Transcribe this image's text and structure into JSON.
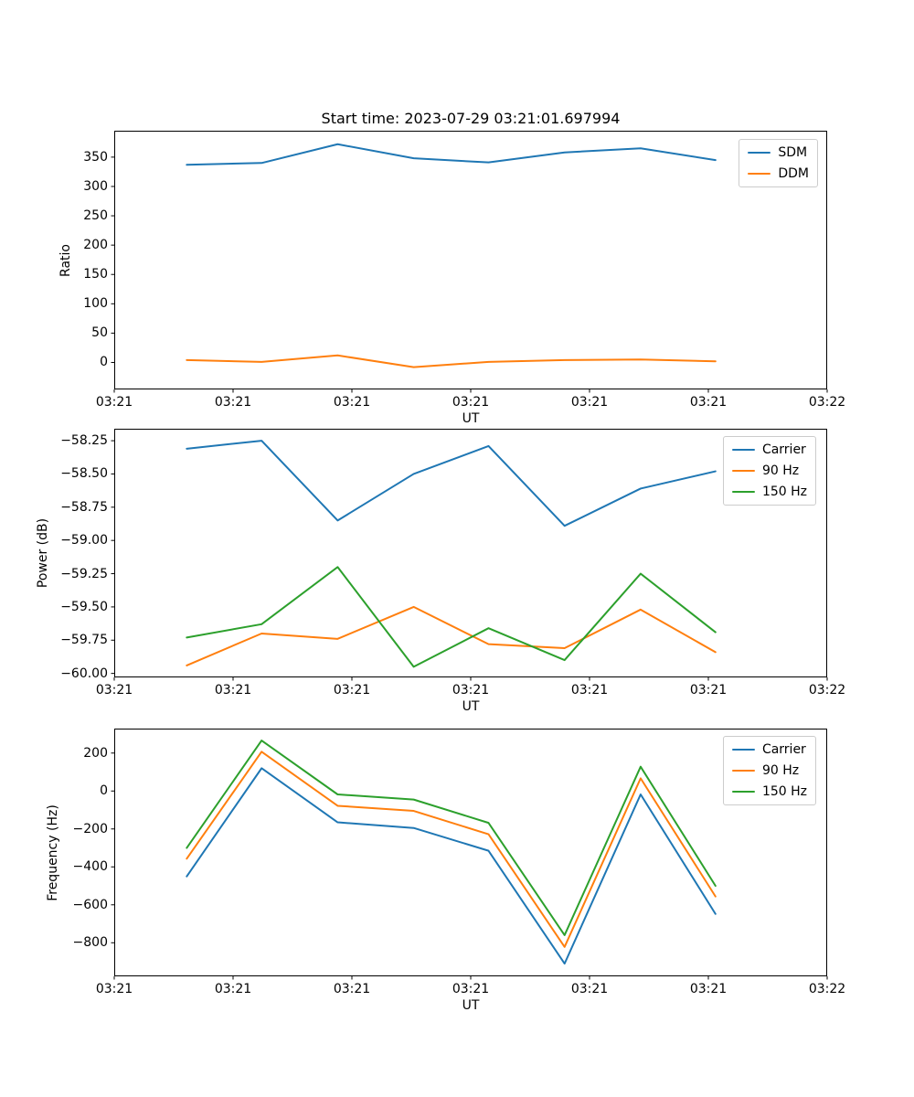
{
  "figure": {
    "background": "#ffffff",
    "frame_color": "#000000",
    "text_color": "#000000",
    "legend_border_color": "#cccccc"
  },
  "chart_data": [
    {
      "type": "line",
      "title": "Start time: 2023-07-29 03:21:01.697994",
      "xlabel": "UT",
      "ylabel": "Ratio",
      "xlim": [
        0,
        60
      ],
      "ylim": [
        -46,
        395
      ],
      "grid": false,
      "legend_position": "upper right",
      "xtick_seconds": [
        0,
        10,
        20,
        30,
        40,
        50,
        60
      ],
      "xtick_labels": [
        "03:21",
        "03:21",
        "03:21",
        "03:21",
        "03:21",
        "03:21",
        "03:22"
      ],
      "yticks": [
        {
          "v": 0,
          "label": "0"
        },
        {
          "v": 50,
          "label": "50"
        },
        {
          "v": 100,
          "label": "100"
        },
        {
          "v": 150,
          "label": "150"
        },
        {
          "v": 200,
          "label": "200"
        },
        {
          "v": 250,
          "label": "250"
        },
        {
          "v": 300,
          "label": "300"
        },
        {
          "v": 350,
          "label": "350"
        }
      ],
      "x_seconds": [
        6.1,
        12.4,
        18.8,
        25.2,
        31.5,
        37.9,
        44.3,
        50.6
      ],
      "series": [
        {
          "name": "SDM",
          "color": "#1f77b4",
          "values": [
            337,
            340,
            372,
            348,
            341,
            358,
            365,
            345
          ]
        },
        {
          "name": "DDM",
          "color": "#ff7f0e",
          "values": [
            4,
            1,
            12,
            -8,
            1,
            4,
            5,
            2
          ]
        }
      ]
    },
    {
      "type": "line",
      "title": "",
      "xlabel": "UT",
      "ylabel": "Power (dB)",
      "xlim": [
        0,
        60
      ],
      "ylim": [
        -60.03,
        -58.16
      ],
      "grid": false,
      "legend_position": "upper right",
      "xtick_seconds": [
        0,
        10,
        20,
        30,
        40,
        50,
        60
      ],
      "xtick_labels": [
        "03:21",
        "03:21",
        "03:21",
        "03:21",
        "03:21",
        "03:21",
        "03:22"
      ],
      "yticks": [
        {
          "v": -60.0,
          "label": "−60.00"
        },
        {
          "v": -59.75,
          "label": "−59.75"
        },
        {
          "v": -59.5,
          "label": "−59.50"
        },
        {
          "v": -59.25,
          "label": "−59.25"
        },
        {
          "v": -59.0,
          "label": "−59.00"
        },
        {
          "v": -58.75,
          "label": "−58.75"
        },
        {
          "v": -58.5,
          "label": "−58.50"
        },
        {
          "v": -58.25,
          "label": "−58.25"
        }
      ],
      "x_seconds": [
        6.1,
        12.4,
        18.8,
        25.2,
        31.5,
        37.9,
        44.3,
        50.6
      ],
      "series": [
        {
          "name": "Carrier",
          "color": "#1f77b4",
          "values": [
            -58.31,
            -58.25,
            -58.85,
            -58.5,
            -58.29,
            -58.89,
            -58.61,
            -58.48
          ]
        },
        {
          "name": "90 Hz",
          "color": "#ff7f0e",
          "values": [
            -59.94,
            -59.7,
            -59.74,
            -59.5,
            -59.78,
            -59.81,
            -59.52,
            -59.84
          ]
        },
        {
          "name": "150 Hz",
          "color": "#2ca02c",
          "values": [
            -59.73,
            -59.63,
            -59.2,
            -59.95,
            -59.66,
            -59.9,
            -59.25,
            -59.69
          ]
        }
      ]
    },
    {
      "type": "line",
      "title": "",
      "xlabel": "UT",
      "ylabel": "Frequency (Hz)",
      "xlim": [
        0,
        60
      ],
      "ylim": [
        -977,
        329
      ],
      "grid": false,
      "legend_position": "upper right",
      "xtick_seconds": [
        0,
        10,
        20,
        30,
        40,
        50,
        60
      ],
      "xtick_labels": [
        "03:21",
        "03:21",
        "03:21",
        "03:21",
        "03:21",
        "03:21",
        "03:22"
      ],
      "yticks": [
        {
          "v": -800,
          "label": "−800"
        },
        {
          "v": -600,
          "label": "−600"
        },
        {
          "v": -400,
          "label": "−400"
        },
        {
          "v": -200,
          "label": "−200"
        },
        {
          "v": 0,
          "label": "0"
        },
        {
          "v": 200,
          "label": "200"
        }
      ],
      "x_seconds": [
        6.1,
        12.4,
        18.8,
        25.2,
        31.5,
        37.9,
        44.3,
        50.6
      ],
      "series": [
        {
          "name": "Carrier",
          "color": "#1f77b4",
          "values": [
            -450,
            120,
            -165,
            -195,
            -315,
            -910,
            -18,
            -648
          ]
        },
        {
          "name": "90 Hz",
          "color": "#ff7f0e",
          "values": [
            -357,
            207,
            -78,
            -105,
            -228,
            -822,
            67,
            -556
          ]
        },
        {
          "name": "150 Hz",
          "color": "#2ca02c",
          "values": [
            -300,
            266,
            -18,
            -45,
            -168,
            -760,
            128,
            -500
          ]
        }
      ]
    }
  ]
}
